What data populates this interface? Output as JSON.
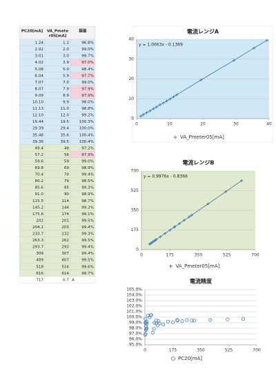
{
  "table": {
    "header": [
      "PC20[mA]",
      "VA_Pmete",
      "r05[mA]",
      "誤差"
    ],
    "rows": [
      [
        "1.24",
        "1.2",
        "96.8%"
      ],
      [
        "2.02",
        "2.0",
        "99.0%"
      ],
      [
        "3.01",
        "3.0",
        "99.7%"
      ],
      [
        "4.02",
        "3.9",
        "97.0%"
      ],
      [
        "5.08",
        "5.0",
        "98.4%"
      ],
      [
        "6.04",
        "5.9",
        "97.7%"
      ],
      [
        "7.07",
        "7.0",
        "99.0%"
      ],
      [
        "8.07",
        "7.9",
        "97.9%"
      ],
      [
        "9.09",
        "8.9",
        "97.9%"
      ],
      [
        "10.10",
        "9.9",
        "98.0%"
      ],
      [
        "11.13",
        "11.0",
        "98.8%"
      ],
      [
        "12.10",
        "12.0",
        "99.2%"
      ],
      [
        "19.44",
        "19.5",
        "100.3%"
      ],
      [
        "29.39",
        "29.4",
        "100.0%"
      ],
      [
        "35.46",
        "35.6",
        "100.4%"
      ],
      [
        "39.36",
        "39.5",
        "100.4%"
      ],
      [
        "49.4",
        "48",
        "97.2%"
      ],
      [
        "57.2",
        "56",
        "97.9%"
      ],
      [
        "59.6",
        "59",
        "99.0%"
      ],
      [
        "69.8",
        "69",
        "98.9%"
      ],
      [
        "70.4",
        "70",
        "99.4%"
      ],
      [
        "80.2",
        "79",
        "98.5%"
      ],
      [
        "85.6",
        "85",
        "99.3%"
      ],
      [
        "91.0",
        "90",
        "98.9%"
      ],
      [
        "115.5",
        "114",
        "98.7%"
      ],
      [
        "145.2",
        "144",
        "99.2%"
      ],
      [
        "175.6",
        "174",
        "99.1%"
      ],
      [
        "202",
        "201",
        "99.5%"
      ],
      [
        "204.2",
        "203",
        "99.4%"
      ],
      [
        "233.7",
        "232",
        "99.3%"
      ],
      [
        "263.3",
        "262",
        "99.5%"
      ],
      [
        "293.7",
        "292",
        "99.4%"
      ],
      [
        "309",
        "307",
        "99.4%"
      ],
      [
        "409",
        "407",
        "99.5%"
      ],
      [
        "518",
        "516",
        "99.6%"
      ],
      [
        "616",
        "614",
        "99.7%"
      ],
      [
        "717",
        "0.7",
        "A"
      ]
    ]
  },
  "chart_data": [
    {
      "type": "scatter",
      "title": "電流レンジA",
      "annotation": "y = 1.0063x - 0.1369",
      "line": true,
      "background": "#cfe8f6",
      "x": [
        1.24,
        2.02,
        3.01,
        4.02,
        5.08,
        6.04,
        7.07,
        8.07,
        9.09,
        10.1,
        11.13,
        12.1,
        19.44,
        29.39,
        35.46,
        39.36
      ],
      "series": [
        {
          "name": "VA_Pmeter05[mA]",
          "color": "#4a7fb5",
          "values": [
            1.2,
            2.0,
            3.0,
            3.9,
            5.0,
            5.9,
            7.0,
            7.9,
            8.9,
            9.9,
            11.0,
            12.0,
            19.5,
            29.4,
            35.6,
            39.5
          ]
        }
      ],
      "xlim": [
        0,
        40
      ],
      "ylim": [
        0,
        40
      ],
      "xticks": [
        0,
        10,
        20,
        30,
        40
      ],
      "yticks": [
        0,
        10,
        20,
        30,
        40
      ],
      "grid": true
    },
    {
      "type": "scatter",
      "title": "電流レンジB",
      "annotation": "y = 0.9976x - 0.8366",
      "line": true,
      "background": "#e0eace",
      "x": [
        49.4,
        57.2,
        59.6,
        69.8,
        70.4,
        80.2,
        85.6,
        91.0,
        115.5,
        145.2,
        175.6,
        202,
        204.2,
        233.7,
        263.3,
        293.7,
        309,
        409,
        518,
        616
      ],
      "series": [
        {
          "name": "VA_Pmeter05[mA]",
          "color": "#4a7fb5",
          "values": [
            48,
            56,
            59,
            69,
            70,
            79,
            85,
            90,
            114,
            144,
            174,
            201,
            203,
            232,
            262,
            292,
            307,
            407,
            516,
            614
          ]
        }
      ],
      "xlim": [
        0,
        700
      ],
      "ylim": [
        0,
        700
      ],
      "xticks": [
        0,
        175,
        350,
        525,
        700
      ],
      "yticks": [
        0,
        175,
        350,
        525,
        700
      ],
      "grid": true
    },
    {
      "type": "scatter",
      "title": "電流精度",
      "line": false,
      "background": "#ffffff",
      "x": [
        1.24,
        2.02,
        3.01,
        4.02,
        5.08,
        6.04,
        7.07,
        8.07,
        9.09,
        10.1,
        11.13,
        12.1,
        19.44,
        29.39,
        35.46,
        39.36,
        49.4,
        57.2,
        59.6,
        69.8,
        70.4,
        80.2,
        85.6,
        91.0,
        115.5,
        145.2,
        175.6,
        202,
        204.2,
        233.7,
        263.3,
        293.7,
        309,
        409,
        518,
        616
      ],
      "series": [
        {
          "name": "PC20[mA]",
          "color": "#4a7fb5",
          "values": [
            96.8,
            99.0,
            99.7,
            97.0,
            98.4,
            97.7,
            99.0,
            97.9,
            97.9,
            98.0,
            98.8,
            99.2,
            100.3,
            100.0,
            100.4,
            100.4,
            97.2,
            97.9,
            99.0,
            98.9,
            99.4,
            98.5,
            99.3,
            98.9,
            98.7,
            99.2,
            99.1,
            99.5,
            99.4,
            99.3,
            99.5,
            99.4,
            99.4,
            99.5,
            99.6,
            99.7
          ]
        }
      ],
      "xlim": [
        0,
        700
      ],
      "ylim": [
        95,
        105
      ],
      "xticks": [
        0,
        175,
        350,
        525,
        700
      ],
      "yticks": [
        {
          "value": 95,
          "label": "95.0%"
        },
        {
          "value": 96,
          "label": "96.0%"
        },
        {
          "value": 97,
          "label": "97.0%"
        },
        {
          "value": 98,
          "label": "98.0%"
        },
        {
          "value": 99,
          "label": "99.0%"
        },
        {
          "value": 100,
          "label": "100.0%"
        },
        {
          "value": 101,
          "label": "101.0%"
        },
        {
          "value": 102,
          "label": "102.0%"
        },
        {
          "value": 103,
          "label": "103.0%"
        },
        {
          "value": 104,
          "label": "104.0%"
        },
        {
          "value": 105,
          "label": "105.0%"
        }
      ],
      "grid": true
    }
  ]
}
